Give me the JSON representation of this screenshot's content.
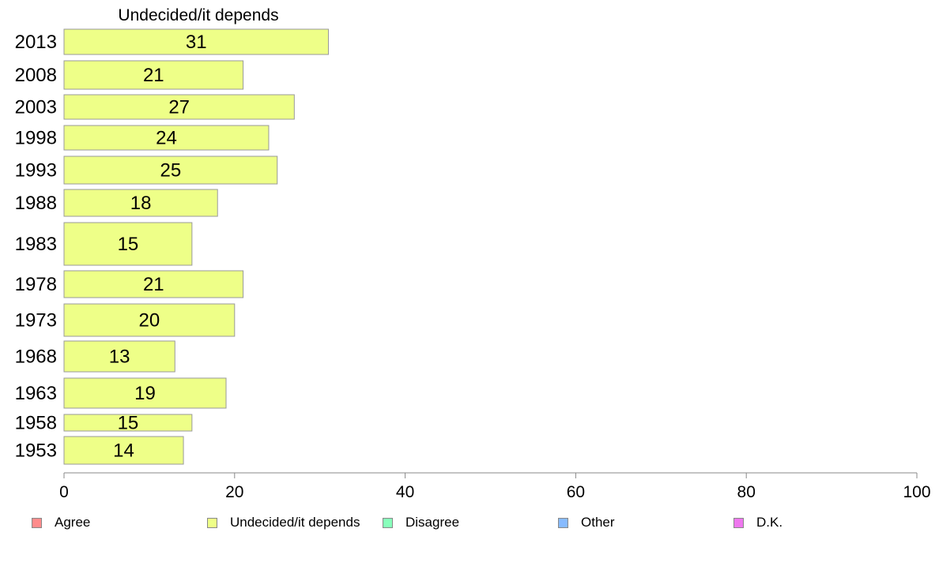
{
  "chart_data": {
    "type": "bar",
    "orientation": "horizontal",
    "title": "Undecided/it depends",
    "categories": [
      "2013",
      "2008",
      "2003",
      "1998",
      "1993",
      "1988",
      "1983",
      "1978",
      "1973",
      "1968",
      "1963",
      "1958",
      "1953"
    ],
    "series": [
      {
        "name": "Undecided/it depends",
        "values": [
          31,
          21,
          27,
          24,
          25,
          18,
          15,
          21,
          20,
          13,
          19,
          15,
          14
        ],
        "color": "#eeff88"
      }
    ],
    "xlim": [
      0,
      100
    ],
    "xticks": [
      "0",
      "20",
      "40",
      "60",
      "80",
      "100"
    ],
    "grid": false,
    "legend_position": "bottom",
    "legend": [
      {
        "label": "Agree",
        "color": "#ff8c8c"
      },
      {
        "label": "Undecided/it depends",
        "color": "#eeff88"
      },
      {
        "label": "Disagree",
        "color": "#88ffbb"
      },
      {
        "label": "Other",
        "color": "#88bbff"
      },
      {
        "label": "D.K.",
        "color": "#ee77ee"
      }
    ]
  }
}
